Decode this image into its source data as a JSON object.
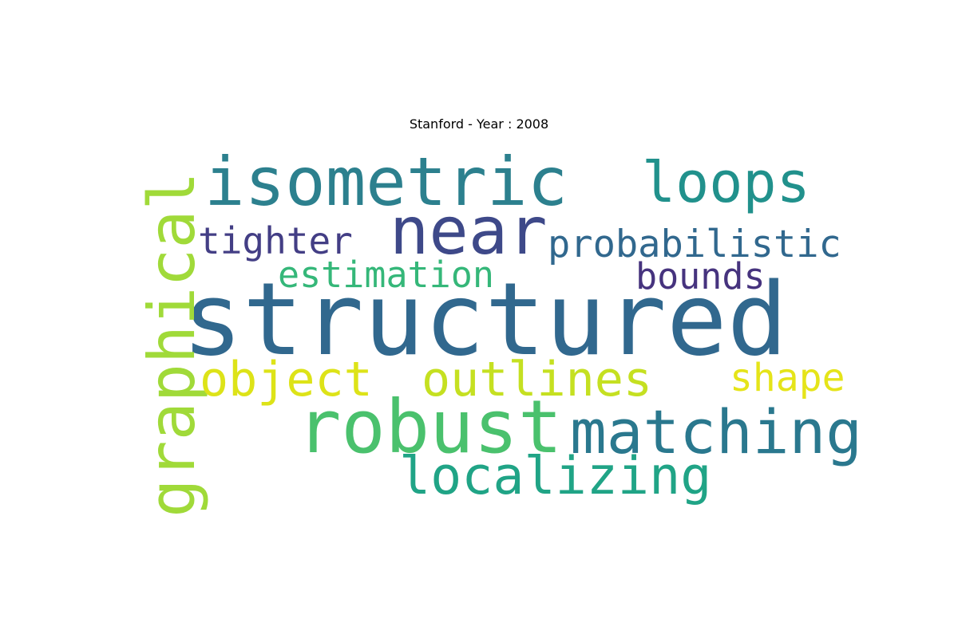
{
  "title": "Stanford - Year : 2008",
  "words": [
    {
      "text": "structured",
      "color": "#31688e"
    },
    {
      "text": "isometric",
      "color": "#2c808e"
    },
    {
      "text": "near",
      "color": "#3e4989"
    },
    {
      "text": "loops",
      "color": "#21918c"
    },
    {
      "text": "tighter",
      "color": "#433e85"
    },
    {
      "text": "probabilistic",
      "color": "#31688e"
    },
    {
      "text": "estimation",
      "color": "#35b779"
    },
    {
      "text": "bounds",
      "color": "#46337e"
    },
    {
      "text": "graphical",
      "color": "#a0da39"
    },
    {
      "text": "object",
      "color": "#dde318"
    },
    {
      "text": "outlines",
      "color": "#c5e021"
    },
    {
      "text": "shape",
      "color": "#e5e419"
    },
    {
      "text": "robust",
      "color": "#4ac16d"
    },
    {
      "text": "matching",
      "color": "#2a788e"
    },
    {
      "text": "localizing",
      "color": "#20a486"
    }
  ]
}
